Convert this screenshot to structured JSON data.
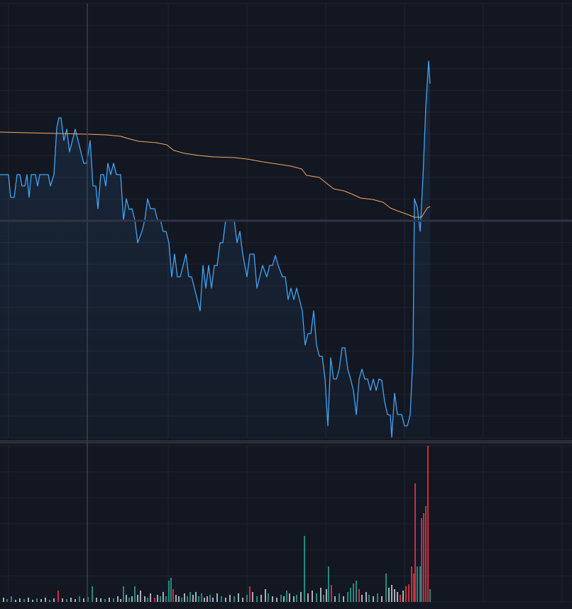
{
  "chart_data": {
    "type": "line",
    "xlim": [
      0,
      806
    ],
    "ylim": [
      0,
      612
    ],
    "xticks": [
      12,
      123,
      237,
      348,
      459,
      570,
      681,
      792
    ],
    "yticks": [
      0,
      30.6,
      61.2,
      91.8,
      122.4,
      153,
      183.6,
      214.2,
      244.8,
      275.4,
      306,
      336.6,
      367.2,
      397.8,
      428.4,
      459,
      489.6,
      520.2,
      550.8,
      581.4,
      612
    ],
    "grid": true,
    "area": true,
    "series": [
      {
        "color": "#42a5f5",
        "x": [
          0,
          12,
          15,
          20,
          24,
          28,
          31,
          35,
          38,
          41,
          44,
          50,
          53,
          56,
          68,
          71,
          76,
          80,
          83,
          86,
          90,
          94,
          98,
          102,
          106,
          110,
          118,
          122,
          127,
          131,
          135,
          138,
          142,
          146,
          149,
          152,
          156,
          160,
          164,
          170,
          174,
          178,
          182,
          186,
          190,
          194,
          200,
          204,
          208,
          212,
          218,
          222,
          226,
          230,
          234,
          238,
          242,
          246,
          250,
          254,
          258,
          262,
          266,
          270,
          274,
          278,
          282,
          286,
          290,
          294,
          298,
          302,
          306,
          310,
          314,
          318,
          330,
          334,
          338,
          342,
          348,
          352,
          358,
          362,
          366,
          370,
          376,
          380,
          384,
          388,
          392,
          398,
          402,
          406,
          410,
          414,
          418,
          422,
          426,
          430,
          434,
          438,
          442,
          446,
          450,
          454,
          458,
          462,
          466,
          470,
          474,
          478,
          482,
          486,
          490,
          494,
          498,
          502,
          506,
          510,
          514,
          518,
          522,
          526,
          530,
          534,
          538,
          542,
          546,
          550,
          552,
          556,
          560,
          566,
          570,
          574,
          578,
          582,
          584,
          588,
          592,
          596,
          600,
          604,
          606
        ],
        "values": [
          371,
          371,
          339,
          339,
          371,
          371,
          355,
          355,
          371,
          339,
          371,
          371,
          355,
          371,
          371,
          355,
          371,
          437,
          451,
          451,
          419,
          435,
          403,
          419,
          435,
          419,
          387,
          387,
          419,
          355,
          355,
          323,
          371,
          371,
          355,
          387,
          371,
          387,
          371,
          371,
          307,
          337,
          322,
          323,
          307,
          275,
          291,
          307,
          337,
          323,
          323,
          307,
          307,
          291,
          291,
          275,
          227,
          259,
          227,
          227,
          243,
          259,
          227,
          227,
          211,
          195,
          179,
          243,
          211,
          243,
          211,
          243,
          243,
          275,
          275,
          307,
          307,
          275,
          291,
          259,
          227,
          259,
          259,
          211,
          227,
          243,
          227,
          243,
          243,
          257,
          243,
          227,
          227,
          195,
          211,
          195,
          211,
          195,
          179,
          131,
          147,
          147,
          179,
          131,
          115,
          115,
          83,
          17,
          113,
          83,
          83,
          97,
          127,
          127,
          97,
          83,
          67,
          33,
          83,
          97,
          83,
          83,
          67,
          83,
          67,
          83,
          81,
          51,
          33,
          32,
          1,
          63,
          33,
          33,
          17,
          17,
          33,
          117,
          337,
          325,
          291,
          367,
          467,
          531,
          499
        ]
      },
      {
        "color": "#f0a860",
        "x": [
          0,
          40,
          80,
          120,
          150,
          170,
          180,
          195,
          220,
          235,
          245,
          260,
          280,
          300,
          330,
          348,
          370,
          390,
          410,
          425,
          432,
          450,
          460,
          470,
          485,
          495,
          508,
          525,
          540,
          550,
          560,
          574,
          584,
          594,
          602,
          606
        ],
        "values": [
          431,
          430,
          429,
          428,
          427,
          425,
          422,
          418,
          416,
          413,
          405,
          401,
          398,
          396,
          395,
          393,
          389,
          386,
          383,
          379,
          370,
          367,
          359,
          351,
          348,
          344,
          338,
          336,
          332,
          324,
          320,
          315,
          311,
          311,
          324,
          326
        ]
      }
    ],
    "volume": {
      "type": "bar",
      "ylim": [
        0,
        220
      ],
      "yticks": [
        0,
        36.7,
        73.3,
        110,
        146.7,
        183.3,
        220
      ],
      "x": [
        5,
        10,
        16,
        22,
        28,
        34,
        40,
        46,
        52,
        58,
        64,
        70,
        76,
        82,
        88,
        94,
        100,
        106,
        112,
        118,
        124,
        130,
        136,
        142,
        148,
        154,
        160,
        166,
        170,
        174,
        178,
        182,
        186,
        190,
        194,
        198,
        204,
        208,
        212,
        218,
        222,
        226,
        230,
        234,
        238,
        241,
        244,
        248,
        252,
        256,
        260,
        264,
        268,
        272,
        276,
        280,
        284,
        288,
        292,
        296,
        300,
        306,
        312,
        318,
        324,
        330,
        336,
        342,
        348,
        352,
        356,
        362,
        368,
        374,
        378,
        384,
        390,
        396,
        400,
        404,
        408,
        414,
        418,
        424,
        429,
        434,
        440,
        446,
        452,
        456,
        460,
        463,
        467,
        472,
        478,
        484,
        490,
        494,
        498,
        502,
        506,
        510,
        516,
        520,
        526,
        532,
        538,
        544,
        548,
        552,
        556,
        560,
        564,
        568,
        572,
        576,
        580,
        583,
        585,
        588,
        592,
        594,
        597,
        600,
        603,
        606
      ],
      "values": [
        6,
        4,
        8,
        3,
        5,
        4,
        6,
        3,
        5,
        4,
        6,
        3,
        5,
        16,
        5,
        4,
        6,
        4,
        8,
        5,
        7,
        22,
        6,
        5,
        4,
        6,
        5,
        8,
        4,
        22,
        10,
        6,
        8,
        22,
        10,
        16,
        8,
        6,
        12,
        6,
        10,
        8,
        14,
        8,
        30,
        34,
        18,
        10,
        8,
        6,
        12,
        8,
        14,
        10,
        14,
        8,
        12,
        6,
        8,
        10,
        6,
        12,
        8,
        6,
        10,
        8,
        12,
        6,
        10,
        22,
        14,
        8,
        10,
        18,
        12,
        8,
        6,
        10,
        8,
        16,
        12,
        8,
        10,
        14,
        93,
        12,
        16,
        12,
        20,
        10,
        18,
        50,
        24,
        8,
        12,
        8,
        14,
        20,
        26,
        30,
        18,
        10,
        14,
        10,
        8,
        12,
        8,
        40,
        20,
        24,
        18,
        14,
        10,
        16,
        22,
        25,
        50,
        40,
        167,
        50,
        50,
        118,
        125,
        135,
        220,
        18
      ],
      "colors": [
        "#d1d4dc",
        "#26a69a",
        "#26a69a",
        "#d1d4dc",
        "#d1d4dc",
        "#26a69a",
        "#d1d4dc",
        "#d1d4dc",
        "#26a69a",
        "#d1d4dc",
        "#d1d4dc",
        "#26a69a",
        "#d1d4dc",
        "#f23645",
        "#d1d4dc",
        "#26a69a",
        "#d1d4dc",
        "#d1d4dc",
        "#26a69a",
        "#d1d4dc",
        "#26a69a",
        "#26a69a",
        "#d1d4dc",
        "#d1d4dc",
        "#26a69a",
        "#d1d4dc",
        "#26a69a",
        "#d1d4dc",
        "#d1d4dc",
        "#26a69a",
        "#d1d4dc",
        "#26a69a",
        "#d1d4dc",
        "#26a69a",
        "#d1d4dc",
        "#d1d4dc",
        "#d1d4dc",
        "#26a69a",
        "#d1d4dc",
        "#f23645",
        "#d1d4dc",
        "#26a69a",
        "#d1d4dc",
        "#26a69a",
        "#26a69a",
        "#26a69a",
        "#f23645",
        "#d1d4dc",
        "#d1d4dc",
        "#26a69a",
        "#d1d4dc",
        "#26a69a",
        "#26a69a",
        "#d1d4dc",
        "#d1d4dc",
        "#26a69a",
        "#26a69a",
        "#d1d4dc",
        "#d1d4dc",
        "#26a69a",
        "#d1d4dc",
        "#d1d4dc",
        "#26a69a",
        "#d1d4dc",
        "#d1d4dc",
        "#26a69a",
        "#d1d4dc",
        "#d1d4dc",
        "#26a69a",
        "#f23645",
        "#d1d4dc",
        "#26a69a",
        "#d1d4dc",
        "#d1d4dc",
        "#26a69a",
        "#d1d4dc",
        "#d1d4dc",
        "#26a69a",
        "#d1d4dc",
        "#26a69a",
        "#d1d4dc",
        "#d1d4dc",
        "#26a69a",
        "#d1d4dc",
        "#26a69a",
        "#d1d4dc",
        "#d1d4dc",
        "#26a69a",
        "#d1d4dc",
        "#26a69a",
        "#d1d4dc",
        "#26a69a",
        "#f23645",
        "#d1d4dc",
        "#26a69a",
        "#d1d4dc",
        "#26a69a",
        "#26a69a",
        "#26a69a",
        "#26a69a",
        "#f23645",
        "#d1d4dc",
        "#d1d4dc",
        "#26a69a",
        "#d1d4dc",
        "#26a69a",
        "#d1d4dc",
        "#26a69a",
        "#d1d4dc",
        "#d1d4dc",
        "#d1d4dc",
        "#d1d4dc",
        "#f23645",
        "#d1d4dc",
        "#f23645",
        "#f23645",
        "#f23645",
        "#f23645",
        "#f23645",
        "#26a69a",
        "#26a69a",
        "#f23645",
        "#f23645",
        "#f23645",
        "#f23645",
        "#26a69a"
      ]
    }
  }
}
